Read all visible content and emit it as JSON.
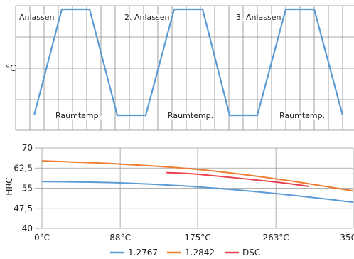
{
  "chart_data": [
    {
      "type": "line",
      "ylabel": "°C",
      "phase_labels": [
        "Anlassen",
        "2. Anlassen",
        "3. Anlassen"
      ],
      "base_labels": [
        "Raumtemp.",
        "Raumtemp.",
        "Raumtemp."
      ],
      "grid": true,
      "colors": {
        "line": "#5b9bd5"
      }
    },
    {
      "type": "line",
      "ylabel": "HRC",
      "x_tick_labels": [
        "0°C",
        "88°C",
        "175°C",
        "263°C",
        "350°C"
      ],
      "y_tick_labels": [
        "70",
        "62,5",
        "55",
        "47,5",
        "40"
      ],
      "xlim": [
        0,
        350
      ],
      "ylim": [
        40,
        70
      ],
      "grid": true,
      "legend": "bottom",
      "series": [
        {
          "name": "1.2767",
          "color": "#5b9bd5",
          "x": [
            0,
            88,
            175,
            263,
            350
          ],
          "y": [
            57.5,
            57,
            55.5,
            53,
            49.8
          ]
        },
        {
          "name": "1.2842",
          "color": "#ed7d31",
          "x": [
            0,
            88,
            175,
            263,
            350
          ],
          "y": [
            65.2,
            64,
            62,
            58.5,
            54
          ]
        },
        {
          "name": "DSC",
          "color": "#e8424f",
          "x": [
            140,
            175,
            263,
            300
          ],
          "y": [
            60.8,
            60.2,
            57.3,
            55.7
          ]
        }
      ]
    }
  ]
}
